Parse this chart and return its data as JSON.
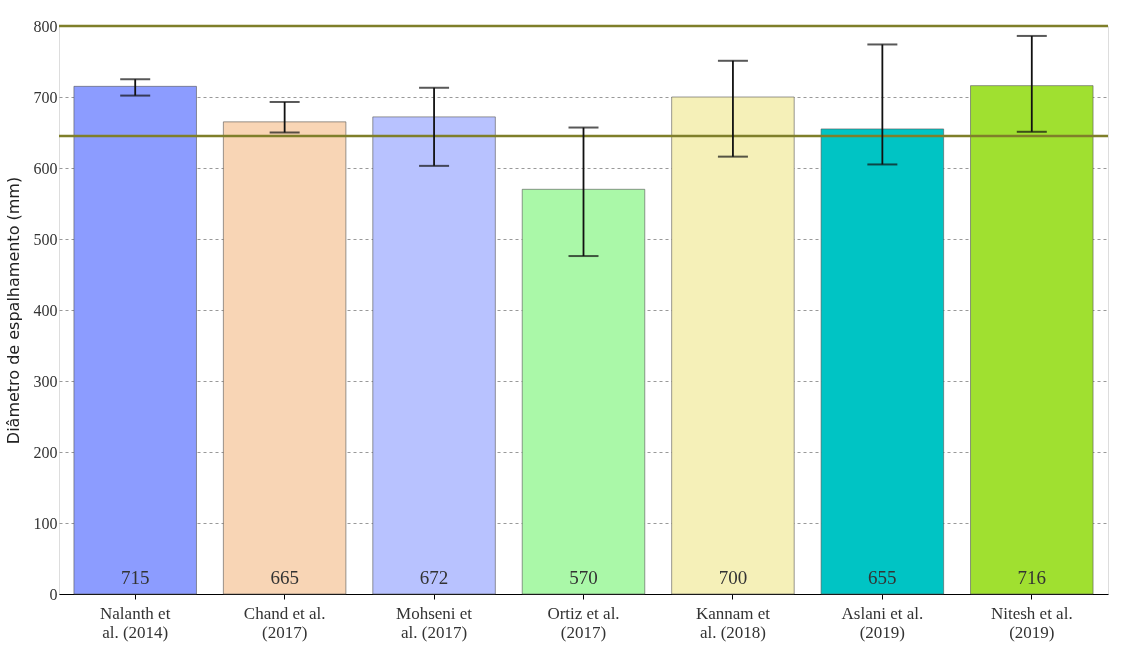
{
  "chart_data": {
    "type": "bar",
    "ylabel": "Diâmetro de espalhamento (mm)",
    "categories": [
      "Nalanth et\nal. (2014)",
      "Chand et al.\n(2017)",
      "Mohseni et\nal. (2017)",
      "Ortiz et al.\n(2017)",
      "Kannam et\nal. (2018)",
      "Aslani et al.\n(2019)",
      "Nitesh et al.\n(2019)"
    ],
    "values": [
      715,
      665,
      672,
      570,
      700,
      655,
      716
    ],
    "colors": [
      "#8c9cff",
      "#f8d5b5",
      "#b8c2ff",
      "#aaf8a8",
      "#f5f0b8",
      "#00c4c4",
      "#a0e030"
    ],
    "errors": [
      [
        702,
        725
      ],
      [
        650,
        693
      ],
      [
        603,
        713
      ],
      [
        476,
        657
      ],
      [
        616,
        751
      ],
      [
        605,
        774
      ],
      [
        651,
        786
      ]
    ],
    "ylim": [
      0,
      800
    ],
    "yticks": [
      0,
      100,
      200,
      300,
      400,
      500,
      600,
      700,
      800
    ],
    "ref_lines": [
      {
        "axis": "y",
        "value": 800,
        "color": "#7f7f2a"
      },
      {
        "axis": "y",
        "value": 645,
        "color": "#7f7f2a"
      }
    ],
    "data_labels": true,
    "grid": "y"
  }
}
